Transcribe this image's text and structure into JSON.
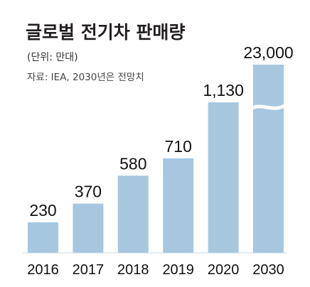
{
  "chart_data": {
    "type": "bar",
    "title": "글로벌 전기차 판매량",
    "unit_note": "(단위: 만대)",
    "source": "자료: IEA, 2030년은 전망치",
    "categories": [
      "2016",
      "2017",
      "2018",
      "2019",
      "2020",
      "2030"
    ],
    "values": [
      230,
      370,
      580,
      710,
      1130,
      23000
    ],
    "value_labels": [
      "230",
      "370",
      "580",
      "710",
      "1,130",
      "23,000"
    ],
    "axis_break_on": "2030",
    "bar_color": "#a7c7df",
    "grid": false,
    "legend": "none"
  }
}
